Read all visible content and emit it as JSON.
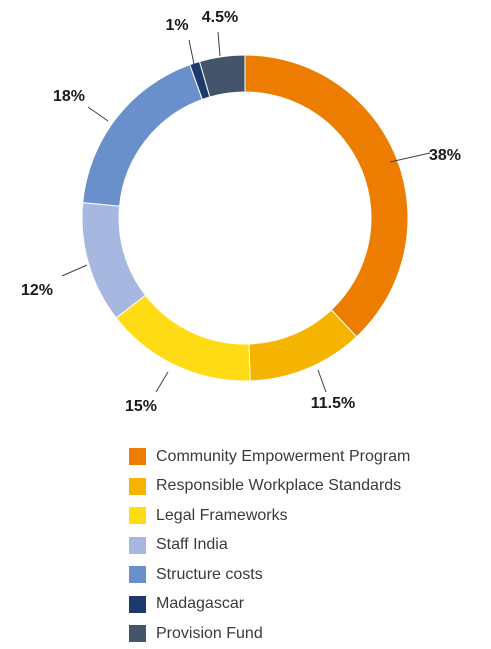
{
  "chart_data": {
    "type": "pie",
    "donut": true,
    "legend_position": "bottom",
    "slices": [
      {
        "name": "Community Empowerment Program",
        "value": 38,
        "label": "38%",
        "color": "#ED7D00"
      },
      {
        "name": "Responsible Workplace Standards",
        "value": 11.5,
        "label": "11.5%",
        "color": "#F5B400"
      },
      {
        "name": "Legal Frameworks",
        "value": 15,
        "label": "15%",
        "color": "#FFDB13"
      },
      {
        "name": "Staff India",
        "value": 12,
        "label": "12%",
        "color": "#A6B7E0"
      },
      {
        "name": "Structure costs",
        "value": 18,
        "label": "18%",
        "color": "#6A90CC"
      },
      {
        "name": "Madagascar",
        "value": 1,
        "label": "1%",
        "color": "#1C3A6E"
      },
      {
        "name": "Provision Fund",
        "value": 4.5,
        "label": "4.5%",
        "color": "#44546A"
      }
    ]
  }
}
